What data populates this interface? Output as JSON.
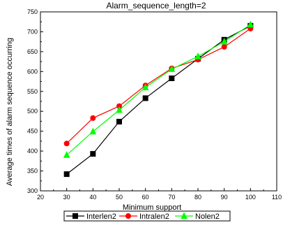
{
  "chart_data": {
    "type": "line",
    "title": "Alarm_sequence_length=2",
    "xlabel": "Minimum support",
    "ylabel": "Average times of alarm sequence occurring",
    "xlim": [
      20,
      110
    ],
    "ylim": [
      300,
      750
    ],
    "xticks": [
      20,
      30,
      40,
      50,
      60,
      70,
      80,
      90,
      100,
      110
    ],
    "yticks": [
      300,
      350,
      400,
      450,
      500,
      550,
      600,
      650,
      700,
      750
    ],
    "x": [
      30,
      40,
      50,
      60,
      70,
      80,
      90,
      100
    ],
    "legend_position": "bottom",
    "grid": false,
    "series": [
      {
        "name": "Interlen2",
        "color": "#000000",
        "marker": "square",
        "values": [
          342,
          393,
          474,
          533,
          583,
          632,
          680,
          715
        ]
      },
      {
        "name": "Intralen2",
        "color": "#ff0000",
        "marker": "circle",
        "values": [
          419,
          483,
          513,
          565,
          608,
          630,
          662,
          708
        ]
      },
      {
        "name": "Nolen2",
        "color": "#00ff00",
        "marker": "triangle",
        "values": [
          390,
          449,
          503,
          560,
          606,
          638,
          675,
          718
        ]
      }
    ]
  }
}
